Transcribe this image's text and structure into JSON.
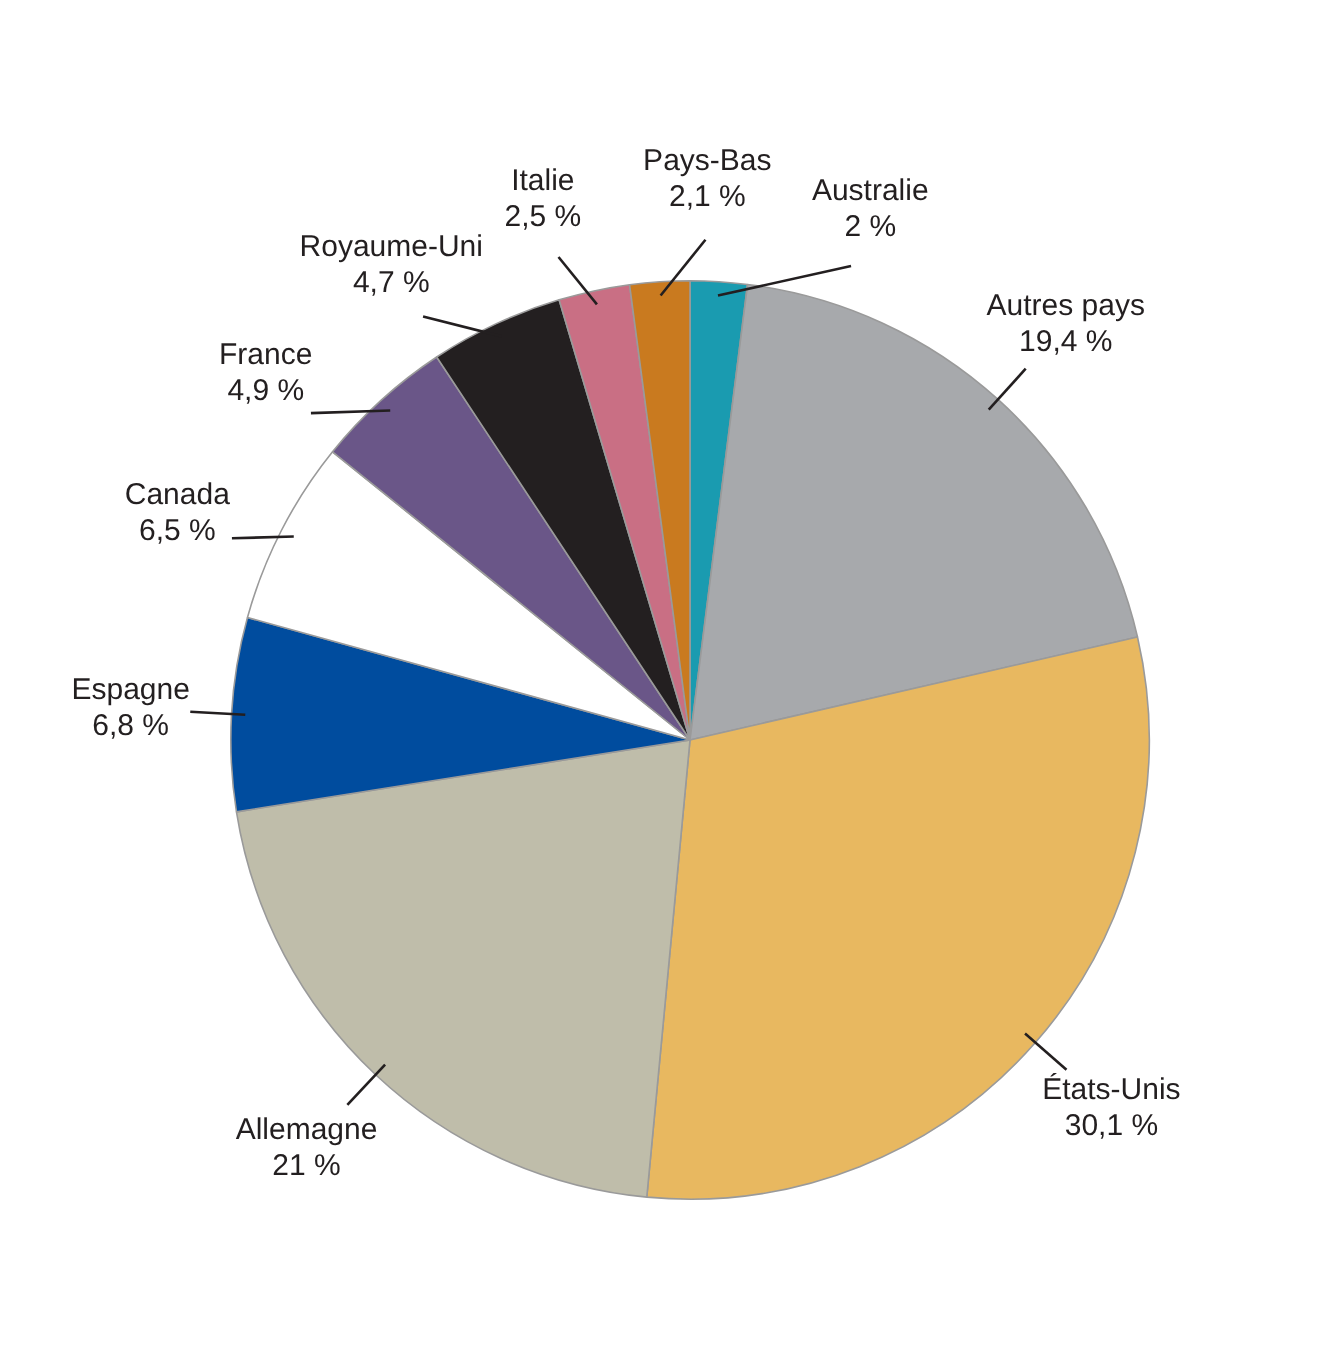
{
  "chart_data": {
    "type": "pie",
    "categories": [
      "Australie",
      "Autres pays",
      "États-Unis",
      "Allemagne",
      "Espagne",
      "Canada",
      "France",
      "Royaume-Uni",
      "Italie",
      "Pays-Bas"
    ],
    "values": [
      2,
      19.4,
      30.1,
      21,
      6.8,
      6.5,
      4.9,
      4.7,
      2.5,
      2.1
    ],
    "colors": [
      "#1a9bb0",
      "#a7a9ac",
      "#e8b860",
      "#bfbdaa",
      "#004c9e",
      "#ffffff",
      "#6a5688",
      "#231f20",
      "#c96f84",
      "#c97a1f"
    ],
    "value_labels": [
      "2 %",
      "19,4 %",
      "30,1 %",
      "21 %",
      "6,8 %",
      "6,5 %",
      "4,9 %",
      "4,7 %",
      "2,5 %",
      "2,1 %"
    ],
    "legend": false
  }
}
